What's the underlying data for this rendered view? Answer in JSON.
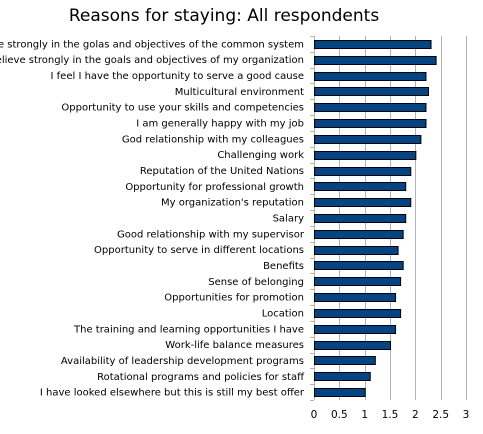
{
  "chart_data": {
    "type": "bar",
    "orientation": "horizontal",
    "title": "Reasons for staying: All respondents",
    "xlabel": "",
    "ylabel": "",
    "xlim": [
      0,
      3
    ],
    "xticks": [
      "0",
      "0.5",
      "1",
      "1.5",
      "2",
      "2.5",
      "3"
    ],
    "grid": true,
    "legend": "none",
    "bar_color": "#004586",
    "categories": [
      "I believe strongly in the golas and objectives of the common system",
      "I believe strongly in the goals and objectives of my organization",
      "I feel I have the opportunity to serve a good cause",
      "Multicultural environment",
      "Opportunity to use your skills and competencies",
      "I am generally happy with my job",
      "God relationship with my colleagues",
      "Challenging work",
      "Reputation of the United Nations",
      "Opportunity for professional growth",
      "My organization's reputation",
      "Salary",
      "Good relationship with my supervisor",
      "Opportunity to serve in different locations",
      "Benefits",
      "Sense of belonging",
      "Opportunities for promotion",
      "Location",
      "The training and learning opportunities I have",
      "Work-life balance measures",
      "Availability of leadership development programs",
      "Rotational programs and policies for staff",
      "I have looked elsewhere but this is still my best offer"
    ],
    "values": [
      2.3,
      2.4,
      2.2,
      2.25,
      2.2,
      2.2,
      2.1,
      2.0,
      1.9,
      1.8,
      1.9,
      1.8,
      1.75,
      1.65,
      1.75,
      1.7,
      1.6,
      1.7,
      1.6,
      1.5,
      1.2,
      1.1,
      1.0
    ]
  }
}
